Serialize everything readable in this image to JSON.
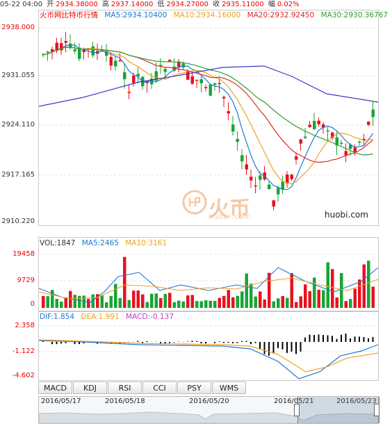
{
  "info": {
    "datetime": "05-22 04:00",
    "open_label": "开",
    "open": "2934.38000",
    "high_label": "高",
    "high": "2937.14000",
    "low_label": "低",
    "low": "2934.27000",
    "close_label": "收",
    "close": "2935.11000",
    "change_label": "幅",
    "change": "0.02%"
  },
  "main_legend": {
    "pair": "火币网比特币行情",
    "ma5": "MA5:2934.10400",
    "ma10": "MA10:2934.16000",
    "ma20": "MA20:2932.92450",
    "ma30": "MA30:2930.36767"
  },
  "main_axis": [
    "2938.000",
    "2931.055",
    "2924.110",
    "2917.165",
    "2910.220"
  ],
  "volume_legend": {
    "vol": "VOL:1847",
    "ma5": "MA5:2465",
    "ma10": "MA10:3161"
  },
  "volume_axis": [
    "19458",
    "9729",
    "0"
  ],
  "macd_legend": {
    "dif": "DIF:1.854",
    "dea": "DEA:1.991",
    "macd": "MACD:-0.137"
  },
  "macd_axis": [
    "2.358",
    "-1.122",
    "-4.602"
  ],
  "watermark": {
    "logo": "火币",
    "url": "huobi.com"
  },
  "site_label": "huobi.com",
  "tabs": [
    "MACD",
    "KDJ",
    "RSI",
    "CCI",
    "PSY",
    "WMS"
  ],
  "active_tab": "MACD",
  "navigator_dates": [
    "2016/05/17",
    "2016/05/18",
    "2016/05/20",
    "2016/05/21",
    "2016/05/23"
  ],
  "colors": {
    "up": "#e8121f",
    "down": "#18a534",
    "ma5": "#1f77d6",
    "ma10": "#f0a01e",
    "ma20": "#e02a2a",
    "ma30": "#2e9e2e",
    "ma60": "#3a3ac9",
    "dif": "#1f77d6",
    "dea": "#f0a01e",
    "macd": "#c040c0"
  }
}
